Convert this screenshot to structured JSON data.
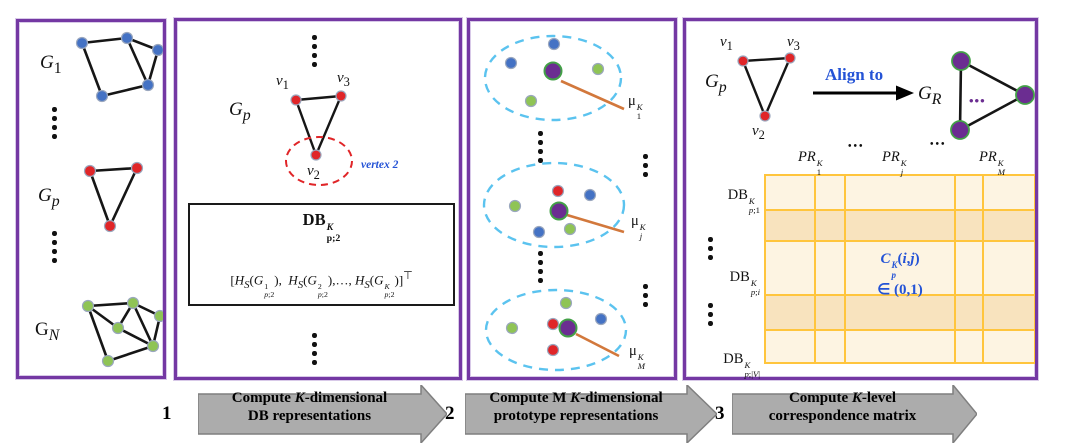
{
  "colors": {
    "panel_border": "#7438A3",
    "node_blue": "#4472C4",
    "node_red": "#E02528",
    "node_green": "#8FC455",
    "prototype_purple": "#6B2D91",
    "prototype_outline": "#43A047",
    "cluster_ellipse_blue": "#5BC3EF",
    "pointer_orange": "#D2783C",
    "brace_orange": "#E8833A",
    "grid_gold": "#FFC53D",
    "cell_light": "#FDF4E2",
    "cell_dark": "#F8E3BE",
    "accent_blue": "#2453D6",
    "step_arrow_gray": "#ACACAC"
  },
  "panel1": {
    "graph1_label": "<i>G</i><sub>1</sub>",
    "graphp_label": "<i>G</i><sub><i>p</i></sub>",
    "graphn_label": "G<sub><i>N</i></sub>"
  },
  "panel2": {
    "graph_label": "<i>G</i><sub><i>p</i></sub>",
    "v1": "<i>v</i><sub>1</sub>",
    "v2": "<i>v</i><sub>2</sub>",
    "v3": "<i>v</i><sub>3</sub>",
    "vertex_callout": "vertex 2",
    "db_title": "DB<span class='ss'><span><i>K</i></span><span>p;2</span></span>",
    "formula": "[<i>H</i><sub><i>S</i></sub>(<i>G</i><span class='ss'><span>1</span><span><i>p</i>;2</span></span>), &nbsp;<i>H</i><sub><i>S</i></sub>(<i>G</i><span class='ss'><span>2</span><span><i>p</i>;2</span></span>),…, <i>H</i><sub><i>S</i></sub>(<i>G</i><span class='ss'><span><i>K</i></span><span><i>p</i>;2</span></span>)]<sup>⊤</sup>"
  },
  "panel3": {
    "mu1": "μ<span class='ss'><span><i>K</i></span><span>1</span></span>",
    "muj": "μ<span class='ss'><span><i>K</i></span><span><i>j</i></span></span>",
    "muM": "μ<span class='ss'><span><i>K</i></span><span><i>M</i></span></span>"
  },
  "panel4": {
    "graph_label": "<i>G</i><sub><i>p</i></sub>",
    "v1": "<i>v</i><sub>1</sub>",
    "v2": "<i>v</i><sub>2</sub>",
    "v3": "<i>v</i><sub>3</sub>",
    "align_label": "Align to",
    "reference_label": "<i>G</i><sub><i>R</i></sub>",
    "gr_inner_dots": "•••",
    "header_dots_1": "•••",
    "header_dots_2": "•••",
    "col1": "<i>PR</i><span class='ss'><span><i>K</i></span><span>1</span></span>",
    "colj": "<i>PR</i><span class='ss'><span><i>K</i></span><span><i>j</i></span></span>",
    "colM": "<i>PR</i><span class='ss'><span><i>K</i></span><span><i>M</i></span></span>",
    "row1": "DB<span class='ss'><span><i>K</i></span><span><i>p</i>;1</span></span>",
    "rowi": "DB<span class='ss'><span><i>K</i></span><span><i>p</i>;<i>i</i></span></span>",
    "rowV": "DB<span class='ss'><span><i>K</i></span><span><i>p</i>;|<i>V</i>|</span></span>",
    "cell_line1": "<b><i>C</i><span class='ss'><span><i>K</i></span><span><i>p</i></span></span>(<i>i</i>,<i>j</i>)</b>",
    "cell_line2": "<b>∈ (0,1)</b>"
  },
  "steps": [
    {
      "num": "1",
      "line1": "Compute <i>K</i>-dimensional",
      "line2": "DB representations"
    },
    {
      "num": "2",
      "line1": "Compute M <i>K</i>-dimensional",
      "line2": "prototype representations"
    },
    {
      "num": "3",
      "line1": "Compute <i>K</i>-level",
      "line2": "correspondence matrix"
    }
  ]
}
